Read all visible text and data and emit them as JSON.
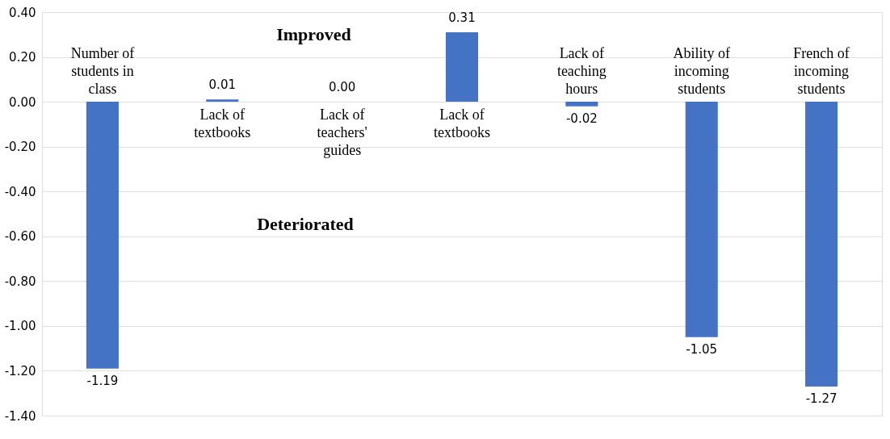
{
  "chart_data": {
    "type": "bar",
    "categories": [
      "Number of students in class",
      "Lack of textbooks",
      "Lack of teachers' guides",
      "Lack of textbooks",
      "Lack of teaching hours",
      "Ability of incoming students",
      "French of incoming students"
    ],
    "values": [
      -1.19,
      0.01,
      0.0,
      0.31,
      -0.02,
      -1.05,
      -1.27
    ],
    "color": "#4472c4",
    "ylim": [
      -1.4,
      0.4
    ],
    "yticks": [
      {
        "value": 0.4,
        "label": "0.40"
      },
      {
        "value": 0.2,
        "label": "0.20"
      },
      {
        "value": 0,
        "label": "0.00"
      },
      {
        "value": -0.2,
        "label": "-0.20"
      },
      {
        "value": -0.4,
        "label": "-0.40"
      },
      {
        "value": -0.6,
        "label": "-0.60"
      },
      {
        "value": -0.8,
        "label": "-0.80"
      },
      {
        "value": -1.0,
        "label": "-1.00"
      },
      {
        "value": -1.2,
        "label": "-1.20"
      },
      {
        "value": -1.4,
        "label": "-1.40"
      }
    ],
    "annotations": [
      "Improved",
      "Deteriorated"
    ],
    "value_labels": [
      "-1.19",
      "0.01",
      "0.00",
      "0.31",
      "-0.02",
      "-1.05",
      "-1.27"
    ],
    "grid": "y",
    "tick_labels": "y"
  }
}
